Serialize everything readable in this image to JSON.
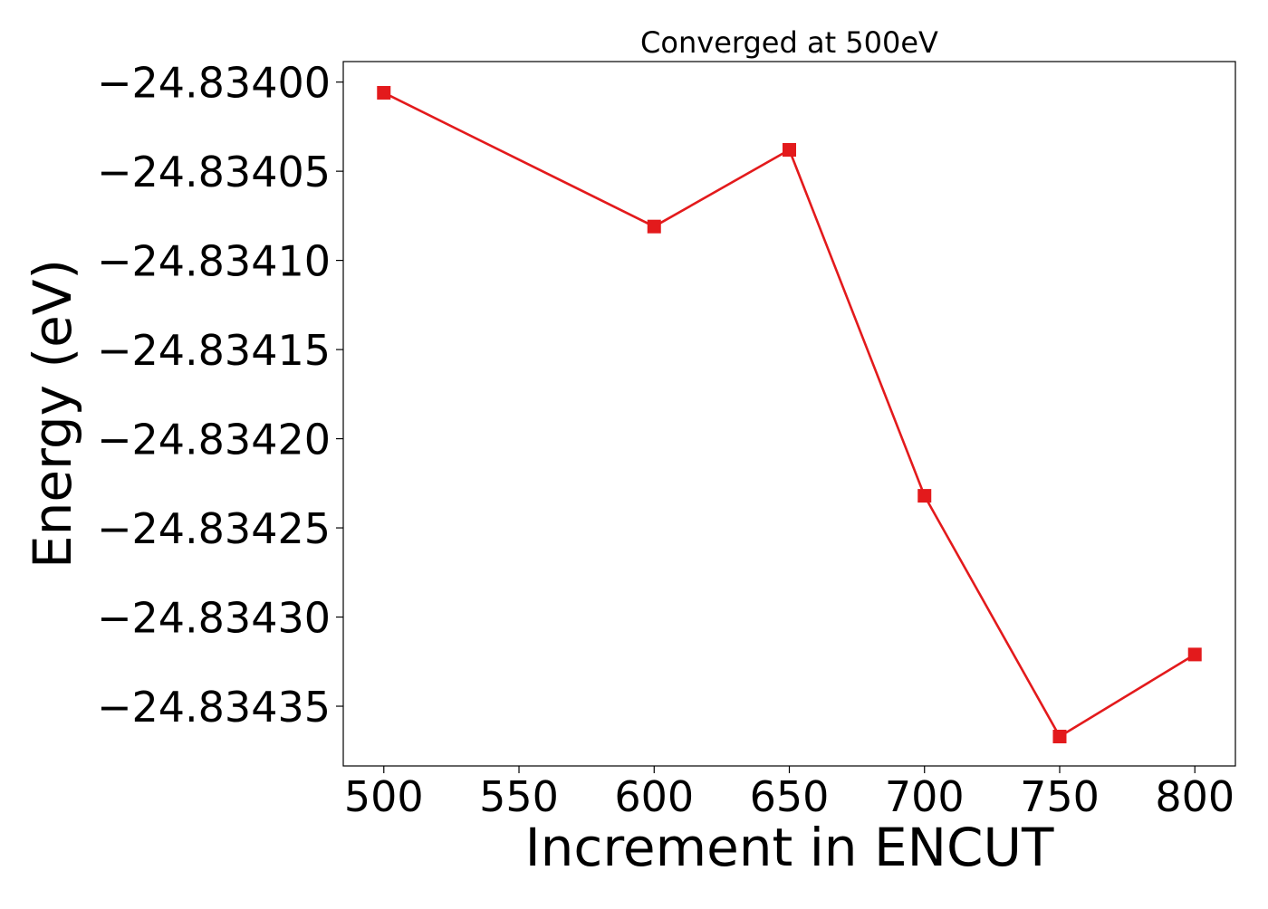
{
  "chart_data": {
    "type": "line",
    "title": "Converged at 500eV",
    "xlabel": "Increment in ENCUT",
    "ylabel": "Energy (eV)",
    "x": [
      500,
      600,
      650,
      700,
      750,
      800
    ],
    "series": [
      {
        "values": [
          -24.834006,
          -24.834081,
          -24.834038,
          -24.834232,
          -24.834367,
          -24.834321
        ],
        "color": "#e31a1c",
        "marker": "square"
      }
    ],
    "xticks": [
      500,
      550,
      600,
      650,
      700,
      750,
      800
    ],
    "xtick_labels": [
      "500",
      "550",
      "600",
      "650",
      "700",
      "750",
      "800"
    ],
    "yticks": [
      -24.834,
      -24.83405,
      -24.8341,
      -24.83415,
      -24.8342,
      -24.83425,
      -24.8343,
      -24.83435
    ],
    "ytick_labels": [
      "−24.83400",
      "−24.83405",
      "−24.83410",
      "−24.83415",
      "−24.83420",
      "−24.83425",
      "−24.83430",
      "−24.83435"
    ],
    "xlim": [
      485,
      815
    ],
    "ylim": [
      -24.8343835,
      -24.8339885
    ],
    "grid": false,
    "legend": "none"
  }
}
